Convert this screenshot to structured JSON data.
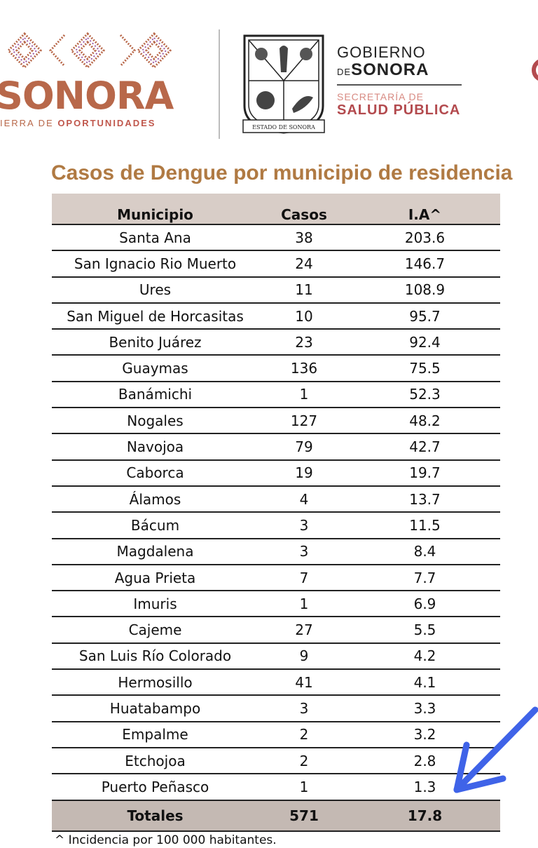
{
  "header": {
    "sonora_logo": {
      "word": "SONORA",
      "tagline_prefix": "IERRA DE",
      "tagline_bold": "OPORTUNIDADES"
    },
    "seal": {
      "label": "ESTADO DE SONORA"
    },
    "government": {
      "line1": "GOBIERNO",
      "line2_small": "DE",
      "line2_big": "SONORA",
      "line3": "SECRETARÍA DE",
      "line4": "SALUD PÚBLICA"
    }
  },
  "title": "Casos de Dengue por municipio de residencia",
  "table": {
    "headers": {
      "municipio": "Municipio",
      "casos": "Casos",
      "ia": "I.A^"
    },
    "rows": [
      {
        "municipio": "Santa Ana",
        "casos": "38",
        "ia": "203.6"
      },
      {
        "municipio": "San Ignacio Rio Muerto",
        "casos": "24",
        "ia": "146.7"
      },
      {
        "municipio": "Ures",
        "casos": "11",
        "ia": "108.9"
      },
      {
        "municipio": "San Miguel de Horcasitas",
        "casos": "10",
        "ia": "95.7"
      },
      {
        "municipio": "Benito Juárez",
        "casos": "23",
        "ia": "92.4"
      },
      {
        "municipio": "Guaymas",
        "casos": "136",
        "ia": "75.5"
      },
      {
        "municipio": "Banámichi",
        "casos": "1",
        "ia": "52.3"
      },
      {
        "municipio": "Nogales",
        "casos": "127",
        "ia": "48.2"
      },
      {
        "municipio": "Navojoa",
        "casos": "79",
        "ia": "42.7"
      },
      {
        "municipio": "Caborca",
        "casos": "19",
        "ia": "19.7"
      },
      {
        "municipio": "Álamos",
        "casos": "4",
        "ia": "13.7"
      },
      {
        "municipio": "Bácum",
        "casos": "3",
        "ia": "11.5"
      },
      {
        "municipio": "Magdalena",
        "casos": "3",
        "ia": "8.4"
      },
      {
        "municipio": "Agua Prieta",
        "casos": "7",
        "ia": "7.7"
      },
      {
        "municipio": "Imuris",
        "casos": "1",
        "ia": "6.9"
      },
      {
        "municipio": "Cajeme",
        "casos": "27",
        "ia": "5.5"
      },
      {
        "municipio": "San Luis Río Colorado",
        "casos": "9",
        "ia": "4.2"
      },
      {
        "municipio": "Hermosillo",
        "casos": "41",
        "ia": "4.1"
      },
      {
        "municipio": "Huatabampo",
        "casos": "3",
        "ia": "3.3"
      },
      {
        "municipio": "Empalme",
        "casos": "2",
        "ia": "3.2"
      },
      {
        "municipio": "Etchojoa",
        "casos": "2",
        "ia": "2.8"
      },
      {
        "municipio": "Puerto Peñasco",
        "casos": "1",
        "ia": "1.3"
      }
    ],
    "totals": {
      "label": "Totales",
      "casos": "571",
      "ia": "17.8"
    }
  },
  "footnote": "^ Incidencia por 100 000 habitantes.",
  "colors": {
    "title": "#b07a43",
    "header_bg": "#d8cdc7",
    "totals_bg": "#c4b9b3",
    "sonora_brand": "#b8684a",
    "salud_brand": "#b34a4e",
    "annotation_arrow": "#3f63e8"
  },
  "icons": [
    "sonora-diamond-pattern-icon",
    "state-seal-icon",
    "annotation-arrow-icon"
  ]
}
